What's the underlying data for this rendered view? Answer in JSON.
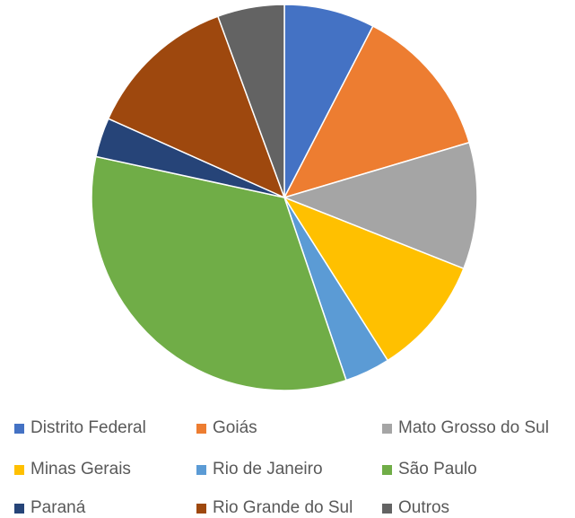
{
  "chart_data": {
    "type": "pie",
    "title": "",
    "legend_position": "bottom",
    "categories": [
      "Distrito Federal",
      "Goiás",
      "Mato Grosso do Sul",
      "Minas Gerais",
      "Rio de Janeiro",
      "São Paulo",
      "Paraná",
      "Rio Grande do Sul",
      "Outros"
    ],
    "values": [
      7.6,
      12.8,
      10.6,
      10.0,
      3.8,
      33.6,
      3.3,
      12.7,
      5.6
    ],
    "colors": [
      "#4472C4",
      "#ED7D31",
      "#A5A5A5",
      "#FFC000",
      "#5B9BD5",
      "#70AD47",
      "#264478",
      "#9E480E",
      "#636363"
    ]
  },
  "legend": {
    "items": [
      {
        "label": "Distrito Federal",
        "color": "#4472C4"
      },
      {
        "label": "Goiás",
        "color": "#ED7D31"
      },
      {
        "label": "Mato Grosso do Sul",
        "color": "#A5A5A5"
      },
      {
        "label": "Minas Gerais",
        "color": "#FFC000"
      },
      {
        "label": "Rio de Janeiro",
        "color": "#5B9BD5"
      },
      {
        "label": "São Paulo",
        "color": "#70AD47"
      },
      {
        "label": "Paraná",
        "color": "#264478"
      },
      {
        "label": "Rio Grande do Sul",
        "color": "#9E480E"
      },
      {
        "label": "Outros",
        "color": "#636363"
      }
    ]
  }
}
